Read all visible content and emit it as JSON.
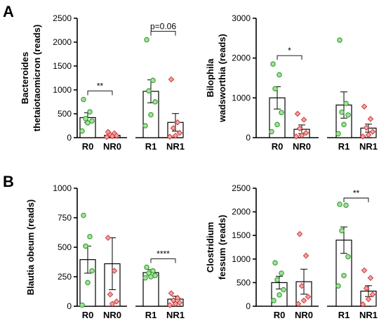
{
  "panel_labels": [
    "A",
    "B"
  ],
  "colors": {
    "responder_point": "#2e9e2e",
    "responder_fill": "#a6e09a",
    "nonresponder_point": "#cc3a3a",
    "nonresponder_fill": "#f2a3a3",
    "bar": "#ffffff",
    "axis": "#000000"
  },
  "chart_data": [
    {
      "panel": "A",
      "type": "bar",
      "ylabel": [
        "Bacteroides",
        "thetaiotaomicron (reads)"
      ],
      "ylim": [
        0,
        2500
      ],
      "yticks": [
        0,
        500,
        1000,
        1500,
        2000,
        2500
      ],
      "categories": [
        "R0",
        "NR0",
        "R1",
        "NR1"
      ],
      "means": [
        420,
        50,
        970,
        320
      ],
      "sem": [
        100,
        30,
        240,
        185
      ],
      "points": [
        [
          800,
          540,
          400,
          350,
          310,
          140
        ],
        [
          120,
          90,
          60,
          40,
          30,
          15
        ],
        [
          2050,
          1200,
          980,
          750,
          480,
          250
        ],
        [
          1220,
          320,
          200,
          100,
          40,
          20
        ]
      ],
      "comparisons": [
        {
          "pair": [
            "R0",
            "NR0"
          ],
          "label": "**"
        },
        {
          "pair": [
            "R1",
            "NR1"
          ],
          "label": "p=0.06"
        }
      ]
    },
    {
      "panel": "A",
      "type": "bar",
      "ylabel": [
        "Bilophila",
        "wadsworthia (reads)"
      ],
      "ylim": [
        0,
        3000
      ],
      "yticks": [
        0,
        1000,
        2000,
        3000
      ],
      "categories": [
        "R0",
        "NR0",
        "R1",
        "NR1"
      ],
      "means": [
        1000,
        210,
        820,
        240
      ],
      "sem": [
        280,
        110,
        330,
        100
      ],
      "points": [
        [
          1850,
          1580,
          1230,
          630,
          330,
          150
        ],
        [
          600,
          450,
          230,
          120,
          60,
          30
        ],
        [
          2450,
          860,
          640,
          570,
          330,
          100
        ],
        [
          780,
          470,
          250,
          150,
          70,
          30
        ]
      ],
      "comparisons": [
        {
          "pair": [
            "R0",
            "NR0"
          ],
          "label": "*"
        }
      ]
    },
    {
      "panel": "B",
      "type": "bar",
      "ylabel": [
        "Blautia obeum (reads)"
      ],
      "ylim": [
        0,
        1000
      ],
      "yticks": [
        0,
        250,
        500,
        750,
        1000
      ],
      "categories": [
        "R0",
        "NR0",
        "R1",
        "NR1"
      ],
      "means": [
        395,
        360,
        285,
        60
      ],
      "sem": [
        115,
        220,
        25,
        25
      ],
      "points": [
        [
          770,
          590,
          510,
          300,
          200,
          10
        ],
        [
          580,
          300,
          100,
          40,
          20
        ],
        [
          330,
          300,
          280,
          260,
          250,
          240
        ],
        [
          110,
          70,
          50,
          30,
          20,
          10
        ]
      ],
      "comparisons": [
        {
          "pair": [
            "R1",
            "NR1"
          ],
          "label": "****"
        }
      ]
    },
    {
      "panel": "B",
      "type": "bar",
      "ylabel": [
        "Clostridium",
        "fessum (reads)"
      ],
      "ylim": [
        0,
        2500
      ],
      "yticks": [
        0,
        500,
        1000,
        1500,
        2000,
        2500
      ],
      "categories": [
        "R0",
        "NR0",
        "R1",
        "NR1"
      ],
      "means": [
        500,
        520,
        1400,
        320
      ],
      "sem": [
        135,
        265,
        280,
        115
      ],
      "points": [
        [
          920,
          700,
          560,
          350,
          240,
          120
        ],
        [
          1530,
          1070,
          430,
          200,
          120,
          50
        ],
        [
          2160,
          2140,
          1600,
          1050,
          650,
          430
        ],
        [
          760,
          600,
          380,
          250,
          150,
          40
        ]
      ],
      "comparisons": [
        {
          "pair": [
            "R1",
            "NR1"
          ],
          "label": "**"
        }
      ]
    }
  ]
}
